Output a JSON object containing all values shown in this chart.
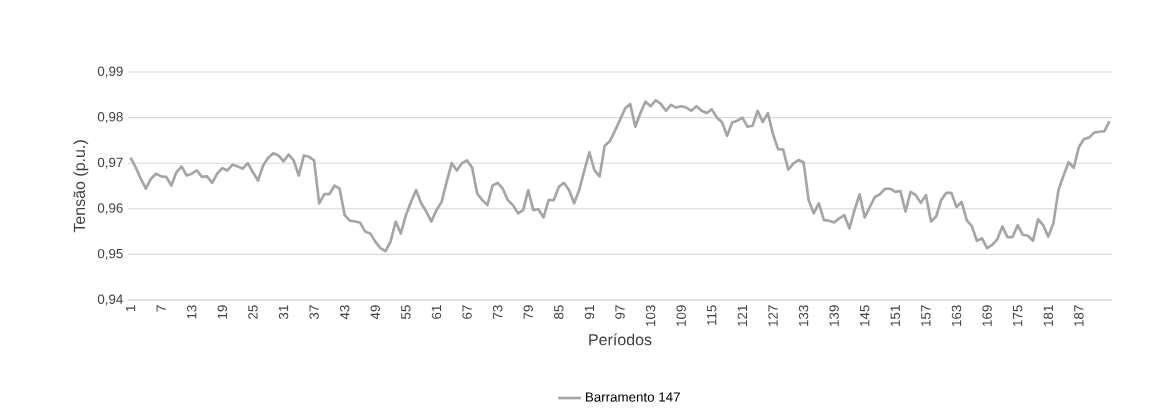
{
  "chart_data": {
    "type": "line",
    "xlabel": "Períodos",
    "ylabel": "Tensão (p.u.)",
    "x": [
      1,
      2,
      3,
      4,
      5,
      6,
      7,
      8,
      9,
      10,
      11,
      12,
      13,
      14,
      15,
      16,
      17,
      18,
      19,
      20,
      21,
      22,
      23,
      24,
      25,
      26,
      27,
      28,
      29,
      30,
      31,
      32,
      33,
      34,
      35,
      36,
      37,
      38,
      39,
      40,
      41,
      42,
      43,
      44,
      45,
      46,
      47,
      48,
      49,
      50,
      51,
      52,
      53,
      54,
      55,
      56,
      57,
      58,
      59,
      60,
      61,
      62,
      63,
      64,
      65,
      66,
      67,
      68,
      69,
      70,
      71,
      72,
      73,
      74,
      75,
      76,
      77,
      78,
      79,
      80,
      81,
      82,
      83,
      84,
      85,
      86,
      87,
      88,
      89,
      90,
      91,
      92,
      93,
      94,
      95,
      96,
      97,
      98,
      99,
      100,
      101,
      102,
      103,
      104,
      105,
      106,
      107,
      108,
      109,
      110,
      111,
      112,
      113,
      114,
      115,
      116,
      117,
      118,
      119,
      120,
      121,
      122,
      123,
      124,
      125,
      126,
      127,
      128,
      129,
      130,
      131,
      132,
      133,
      134,
      135,
      136,
      137,
      138,
      139,
      140,
      141,
      142,
      143,
      144,
      145,
      146,
      147,
      148,
      149,
      150,
      151,
      152,
      153,
      154,
      155,
      156,
      157,
      158,
      159,
      160,
      161,
      162,
      163,
      164,
      165,
      166,
      167,
      168,
      169,
      170,
      171,
      172,
      173,
      174,
      175,
      176,
      177,
      178,
      179,
      180,
      181,
      182,
      183,
      184,
      185,
      186,
      187,
      188,
      189,
      190,
      191,
      192,
      193
    ],
    "series": [
      {
        "name": "Barramento 147",
        "color": "#a5a5a5",
        "values": [
          0.9712,
          0.9691,
          0.9666,
          0.9644,
          0.9666,
          0.9677,
          0.9671,
          0.967,
          0.9651,
          0.968,
          0.9693,
          0.9673,
          0.9677,
          0.9684,
          0.967,
          0.9671,
          0.9657,
          0.9677,
          0.9689,
          0.9684,
          0.9697,
          0.9693,
          0.9688,
          0.97,
          0.968,
          0.9662,
          0.9695,
          0.9712,
          0.9722,
          0.9717,
          0.9704,
          0.9719,
          0.9706,
          0.9673,
          0.9717,
          0.9714,
          0.9706,
          0.9612,
          0.9632,
          0.9632,
          0.9651,
          0.9644,
          0.9586,
          0.9574,
          0.9572,
          0.957,
          0.955,
          0.9546,
          0.9528,
          0.9514,
          0.9507,
          0.9528,
          0.9572,
          0.9546,
          0.9586,
          0.9615,
          0.9641,
          0.9612,
          0.9594,
          0.9572,
          0.9597,
          0.9615,
          0.9659,
          0.97,
          0.9684,
          0.97,
          0.9706,
          0.969,
          0.9633,
          0.9619,
          0.9608,
          0.9651,
          0.9657,
          0.9644,
          0.9619,
          0.9608,
          0.959,
          0.9597,
          0.9641,
          0.9597,
          0.9599,
          0.9581,
          0.9619,
          0.9619,
          0.9648,
          0.9657,
          0.9641,
          0.9612,
          0.9641,
          0.9684,
          0.9724,
          0.9684,
          0.9671,
          0.9738,
          0.9748,
          0.9771,
          0.9795,
          0.982,
          0.983,
          0.978,
          0.981,
          0.9835,
          0.9825,
          0.9838,
          0.983,
          0.9815,
          0.9828,
          0.9822,
          0.9825,
          0.9822,
          0.9815,
          0.9825,
          0.9815,
          0.981,
          0.9818,
          0.98,
          0.979,
          0.976,
          0.9789,
          0.9793,
          0.98,
          0.978,
          0.9782,
          0.9815,
          0.979,
          0.981,
          0.9764,
          0.9731,
          0.973,
          0.9686,
          0.9699,
          0.9707,
          0.9702,
          0.9619,
          0.959,
          0.9612,
          0.9575,
          0.9574,
          0.957,
          0.9579,
          0.9586,
          0.9557,
          0.9597,
          0.9632,
          0.9581,
          0.9604,
          0.9626,
          0.9632,
          0.9644,
          0.9644,
          0.9637,
          0.9639,
          0.9594,
          0.9637,
          0.963,
          0.9613,
          0.963,
          0.9572,
          0.9583,
          0.9619,
          0.9635,
          0.9635,
          0.9604,
          0.9615,
          0.9575,
          0.9562,
          0.953,
          0.9535,
          0.9514,
          0.9521,
          0.9533,
          0.9561,
          0.9538,
          0.9538,
          0.9564,
          0.9543,
          0.9541,
          0.953,
          0.9577,
          0.9564,
          0.9539,
          0.9568,
          0.9641,
          0.9673,
          0.9702,
          0.969,
          0.9735,
          0.9753,
          0.9756,
          0.9767,
          0.9769,
          0.977,
          0.9792
        ]
      }
    ],
    "xlim": [
      0.5,
      193.5
    ],
    "xticks": [
      1,
      7,
      13,
      19,
      25,
      31,
      37,
      43,
      49,
      55,
      61,
      67,
      73,
      79,
      85,
      91,
      97,
      103,
      109,
      115,
      121,
      127,
      133,
      139,
      145,
      151,
      157,
      163,
      169,
      175,
      181,
      187
    ],
    "ylim": [
      0.94,
      0.99
    ],
    "yticks": [
      {
        "value": 0.94,
        "label": "0,94"
      },
      {
        "value": 0.95,
        "label": "0,95"
      },
      {
        "value": 0.96,
        "label": "0,96"
      },
      {
        "value": 0.97,
        "label": "0,97"
      },
      {
        "value": 0.98,
        "label": "0,98"
      },
      {
        "value": 0.99,
        "label": "0,99"
      }
    ],
    "grid": "y",
    "legend": "bottom",
    "marker": "none",
    "line_style": "solid"
  }
}
